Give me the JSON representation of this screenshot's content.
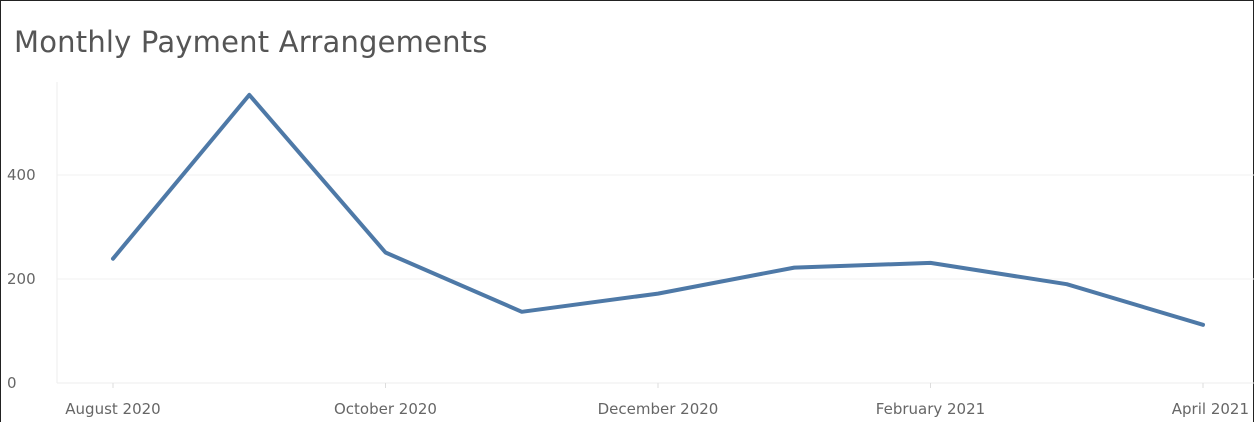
{
  "chart_data": {
    "type": "line",
    "title": "Monthly Payment Arrangements",
    "xlabel": "",
    "ylabel": "",
    "x": [
      "2020-08",
      "2020-09",
      "2020-10",
      "2020-11",
      "2020-12",
      "2021-01",
      "2021-02",
      "2021-03",
      "2021-04"
    ],
    "values": [
      239,
      554,
      251,
      137,
      172,
      222,
      231,
      190,
      112
    ],
    "ylim": [
      0,
      590
    ],
    "yticks": [
      0,
      200,
      400
    ],
    "ytick_labels": [
      "0",
      "200",
      "400"
    ],
    "xticks": [
      {
        "x": "2020-08",
        "label": "August 2020"
      },
      {
        "x": "2020-10",
        "label": "October 2020"
      },
      {
        "x": "2020-12",
        "label": "December 2020"
      },
      {
        "x": "2021-02",
        "label": "February 2021"
      },
      {
        "x": "2021-04",
        "label": "April 2021"
      }
    ],
    "grid": true,
    "line_color": "#4e79a7",
    "grid_color": "#f0f0f0",
    "tick_color": "#666666"
  }
}
